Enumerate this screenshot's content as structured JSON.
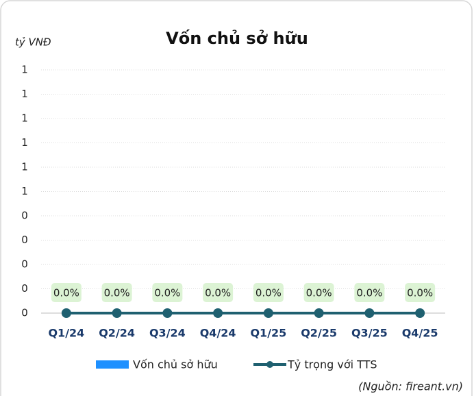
{
  "chart_data": {
    "type": "bar_line",
    "title": "Vốn chủ sở hữu",
    "y_label": "tỷ VNĐ",
    "source": "(Nguồn: fireant.vn)",
    "categories": [
      "Q1/24",
      "Q2/24",
      "Q3/24",
      "Q4/24",
      "Q1/25",
      "Q2/25",
      "Q3/25",
      "Q4/25"
    ],
    "ylim": [
      0,
      1
    ],
    "yticks": [
      0,
      {
        "value": 0.1,
        "label": "0"
      },
      {
        "value": 0.2,
        "label": "0"
      },
      {
        "value": 0.3,
        "label": "0"
      },
      {
        "value": 0.4,
        "label": "0"
      },
      {
        "value": 0.5,
        "label": "1"
      },
      {
        "value": 0.6,
        "label": "1"
      },
      {
        "value": 0.7,
        "label": "1"
      },
      {
        "value": 0.8,
        "label": "1"
      },
      {
        "value": 0.9,
        "label": "1"
      },
      1
    ],
    "grid": true,
    "series": [
      {
        "name": "Vốn chủ sở hữu",
        "type": "bar",
        "color": "#1e90ff",
        "values": [
          0,
          0,
          0,
          0,
          0,
          0,
          0,
          0
        ]
      },
      {
        "name": "Tỷ trọng với TTS",
        "type": "line",
        "color": "#1f6070",
        "values": [
          0,
          0,
          0,
          0,
          0,
          0,
          0,
          0
        ],
        "value_labels": [
          "0.0%",
          "0.0%",
          "0.0%",
          "0.0%",
          "0.0%",
          "0.0%",
          "0.0%",
          "0.0%"
        ]
      }
    ]
  }
}
